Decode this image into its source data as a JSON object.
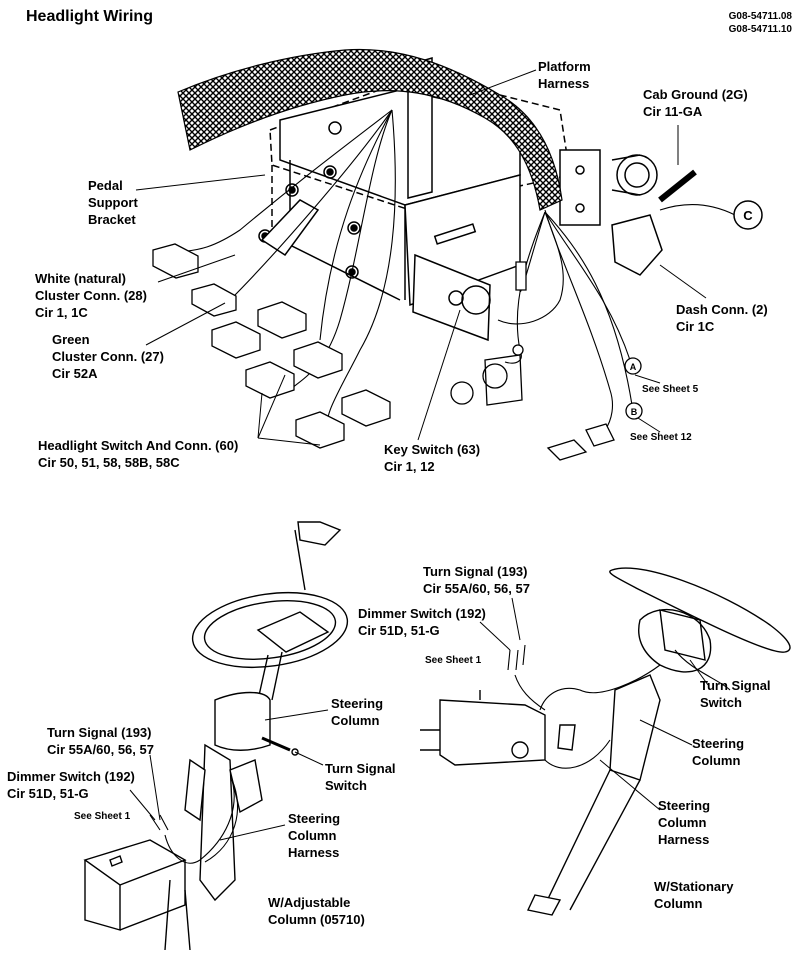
{
  "title": "Headlight Wiring",
  "doc_numbers": [
    "G08-54711.08",
    "G08-54711.10"
  ],
  "top": {
    "platform_harness": [
      "Platform",
      "Harness"
    ],
    "cab_ground": [
      "Cab Ground (2G)",
      "Cir 11-GA"
    ],
    "pedal_support": [
      "Pedal",
      "Support",
      "Bracket"
    ],
    "white_cluster": [
      "White (natural)",
      "Cluster Conn. (28)",
      "Cir 1, 1C"
    ],
    "green_cluster": [
      "Green",
      "Cluster Conn. (27)",
      "Cir 52A"
    ],
    "dash_conn": [
      "Dash Conn. (2)",
      "Cir 1C"
    ],
    "headlight_switch": [
      "Headlight Switch And Conn. (60)",
      "Cir 50, 51, 58, 58B, 58C"
    ],
    "key_switch": [
      "Key Switch (63)",
      "Cir 1, 12"
    ],
    "circle_c": "C",
    "circle_a": "A",
    "circle_b": "B",
    "see_sheet_5": "See Sheet 5",
    "see_sheet_12": "See Sheet 12"
  },
  "left": {
    "steering_column": [
      "Steering",
      "Column"
    ],
    "turn_signal": [
      "Turn Signal (193)",
      "Cir 55A/60, 56, 57"
    ],
    "turn_signal_switch": [
      "Turn Signal",
      "Switch"
    ],
    "dimmer_switch": [
      "Dimmer Switch (192)",
      "Cir 51D, 51-G"
    ],
    "see_sheet_1": "See Sheet 1",
    "column_harness": [
      "Steering",
      "Column",
      "Harness"
    ],
    "caption": [
      "W/Adjustable",
      "Column (05710)"
    ]
  },
  "right": {
    "turn_signal": [
      "Turn Signal (193)",
      "Cir 55A/60, 56, 57"
    ],
    "dimmer_switch": [
      "Dimmer Switch (192)",
      "Cir 51D, 51-G"
    ],
    "see_sheet_1": "See Sheet 1",
    "turn_signal_switch": [
      "Turn Signal",
      "Switch"
    ],
    "steering_column": [
      "Steering",
      "Column"
    ],
    "column_harness": [
      "Steering",
      "Column",
      "Harness"
    ],
    "caption": [
      "W/Stationary",
      "Column"
    ]
  }
}
